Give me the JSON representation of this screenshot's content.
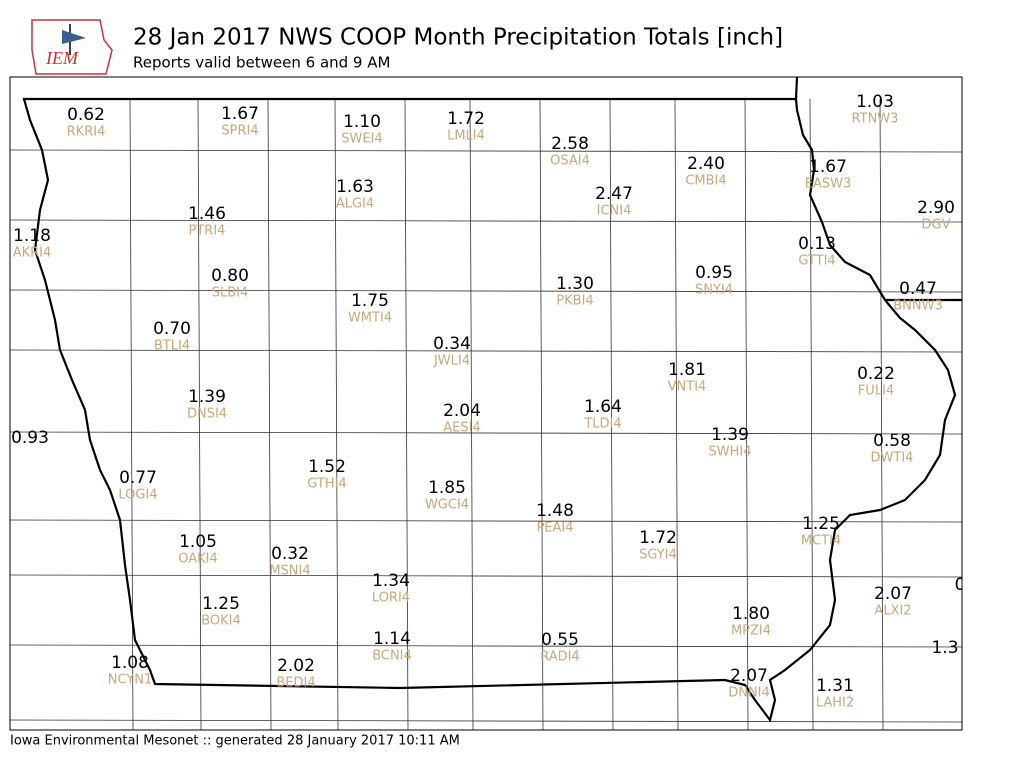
{
  "header": {
    "logo": "IEM",
    "title": "28 Jan 2017 NWS COOP Month Precipitation Totals [inch]",
    "subtitle": "Reports valid between 6 and 9 AM"
  },
  "stations": [
    {
      "value": "0.62",
      "id": "RKRI4"
    },
    {
      "value": "1.67",
      "id": "SPRI4"
    },
    {
      "value": "1.10",
      "id": "SWEI4"
    },
    {
      "value": "1.72",
      "id": "LMLI4"
    },
    {
      "value": "2.58",
      "id": "OSAI4"
    },
    {
      "value": "2.40",
      "id": "CMBI4"
    },
    {
      "value": "2.47",
      "id": "ICNI4"
    },
    {
      "value": "1.03",
      "id": "RTNW3"
    },
    {
      "value": "1.67",
      "id": "EASW3"
    },
    {
      "value": "1.63",
      "id": "ALGI4"
    },
    {
      "value": "1.46",
      "id": "PTRI4"
    },
    {
      "value": "2.90",
      "id": "DGV"
    },
    {
      "value": "1.18",
      "id": "AKRI4"
    },
    {
      "value": "0.13",
      "id": "GTTI4"
    },
    {
      "value": "0.80",
      "id": "SLBI4"
    },
    {
      "value": "1.30",
      "id": "PKBI4"
    },
    {
      "value": "0.95",
      "id": "SNYI4"
    },
    {
      "value": "0.47",
      "id": "BNNW3"
    },
    {
      "value": "1.75",
      "id": "WMTI4"
    },
    {
      "value": "0.70",
      "id": "BTLI4"
    },
    {
      "value": "0.34",
      "id": "JWLI4"
    },
    {
      "value": "1.81",
      "id": "VNTI4"
    },
    {
      "value": "0.22",
      "id": "FULI4"
    },
    {
      "value": "1.39",
      "id": "DNSI4"
    },
    {
      "value": "2.04",
      "id": "AESI4"
    },
    {
      "value": "1.64",
      "id": "TLDI4"
    },
    {
      "value": "1.39",
      "id": "SWHI4"
    },
    {
      "value": "0.58",
      "id": "DWTI4"
    },
    {
      "value": "0.93"
    },
    {
      "value": "0.77",
      "id": "LOGI4"
    },
    {
      "value": "1.52",
      "id": "GTHI4"
    },
    {
      "value": "1.85",
      "id": "WGCI4"
    },
    {
      "value": "1.48",
      "id": "PEAI4"
    },
    {
      "value": "1.72",
      "id": "SGYI4"
    },
    {
      "value": "1.25",
      "id": "MCTI4"
    },
    {
      "value": "1.05",
      "id": "OAKI4"
    },
    {
      "value": "0.32",
      "id": "MSNI4"
    },
    {
      "value": "1.34",
      "id": "LORI4"
    },
    {
      "value": "2.07",
      "id": "ALXI2"
    },
    {
      "value": "1.25",
      "id": "BOKI4"
    },
    {
      "value": "1.80",
      "id": "MPZI4"
    },
    {
      "value": "1.14",
      "id": "BCNI4"
    },
    {
      "value": "0.55",
      "id": "RADI4"
    },
    {
      "value": "1.08",
      "id": "NCYN1"
    },
    {
      "value": "2.02",
      "id": "BEDI4"
    },
    {
      "value": "2.07",
      "id": "DNNI4"
    },
    {
      "value": "1.31",
      "id": "LAHI2"
    },
    {
      "value": "0"
    },
    {
      "value": "1.3"
    }
  ],
  "footer": "Iowa Environmental Mesonet :: generated 28 January 2017 10:11 AM"
}
